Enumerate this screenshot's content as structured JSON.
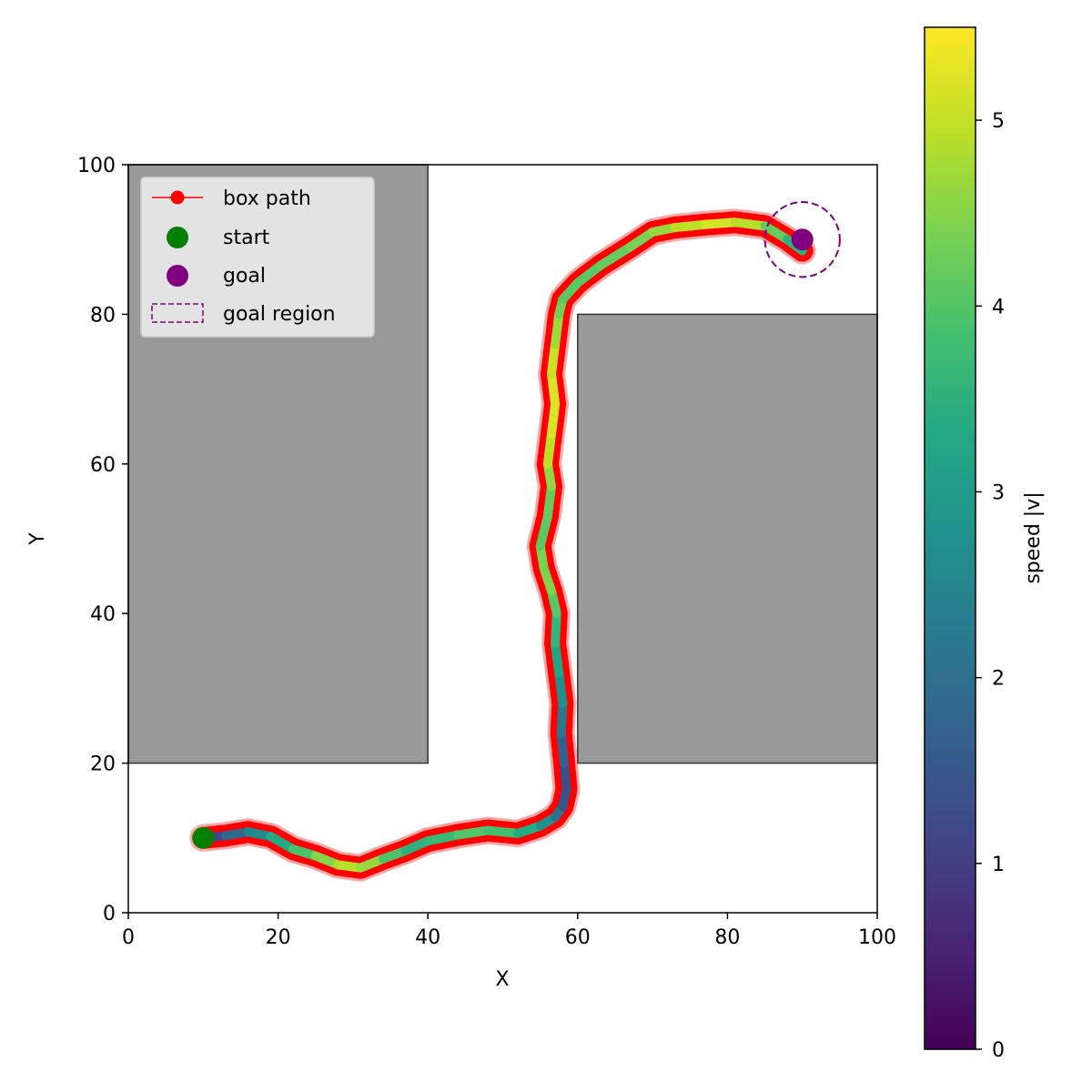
{
  "chart_data": {
    "type": "line",
    "xlabel": "X",
    "ylabel": "Y",
    "xlim": [
      0,
      100
    ],
    "ylim": [
      0,
      100
    ],
    "x_ticks": [
      "0",
      "20",
      "40",
      "60",
      "80",
      "100"
    ],
    "y_ticks": [
      "0",
      "20",
      "40",
      "60",
      "80",
      "100"
    ],
    "legend": {
      "placement": "upper-left",
      "entries": [
        "box path",
        "start",
        "goal",
        "goal region"
      ]
    },
    "obstacles": [
      {
        "x": 0,
        "y": 20,
        "width": 40,
        "height": 80
      },
      {
        "x": 60,
        "y": 20,
        "width": 40,
        "height": 60
      }
    ],
    "series": [
      {
        "name": "box path",
        "color": "#ff0000",
        "x": [
          10,
          13,
          16,
          19,
          22,
          25,
          28,
          31,
          34,
          37,
          40,
          44,
          48,
          52,
          55,
          57,
          58,
          58.5,
          58.2,
          57.8,
          58.0,
          57.5,
          57.0,
          57.2,
          56.5,
          55.5,
          55.0,
          56.0,
          56.5,
          56.0,
          56.5,
          57.0,
          56.5,
          57.0,
          57.5,
          58.0,
          60.0,
          63.0,
          67.0,
          70.0,
          73.0,
          77.0,
          81.0,
          85.0,
          88.0,
          90.0
        ],
        "y": [
          10,
          10.3,
          10.8,
          10.2,
          8.5,
          7.6,
          6.4,
          6.0,
          7.2,
          8.3,
          9.6,
          10.4,
          11.0,
          10.6,
          11.6,
          12.8,
          14.2,
          16.5,
          20,
          24,
          28,
          32,
          36,
          40,
          43,
          46,
          49,
          53,
          57,
          60,
          64,
          68,
          72,
          76,
          80,
          82,
          84.2,
          86.5,
          89,
          91,
          91.6,
          92.0,
          92.3,
          91.8,
          90.0,
          88.5
        ],
        "speed": [
          0.8,
          1.5,
          2.2,
          3.0,
          3.6,
          4.2,
          4.8,
          5.0,
          4.3,
          3.6,
          3.4,
          3.9,
          4.1,
          3.6,
          3.1,
          2.4,
          1.6,
          1.2,
          1.4,
          1.9,
          2.4,
          3.0,
          3.4,
          3.8,
          4.3,
          4.6,
          4.2,
          4.0,
          4.4,
          4.8,
          5.1,
          5.3,
          5.2,
          4.9,
          4.5,
          4.2,
          4.0,
          4.1,
          4.3,
          4.5,
          4.8,
          5.1,
          5.2,
          4.6,
          3.8,
          3.2
        ]
      }
    ],
    "start": {
      "x": 10,
      "y": 10,
      "color": "#008000"
    },
    "goal": {
      "x": 90,
      "y": 90,
      "color": "#800080",
      "radius": 5
    },
    "colorbar": {
      "label": "speed |v|",
      "colormap": "viridis",
      "min": 0,
      "max": 5.5,
      "ticks": [
        "0",
        "1",
        "2",
        "3",
        "4",
        "5"
      ]
    }
  }
}
